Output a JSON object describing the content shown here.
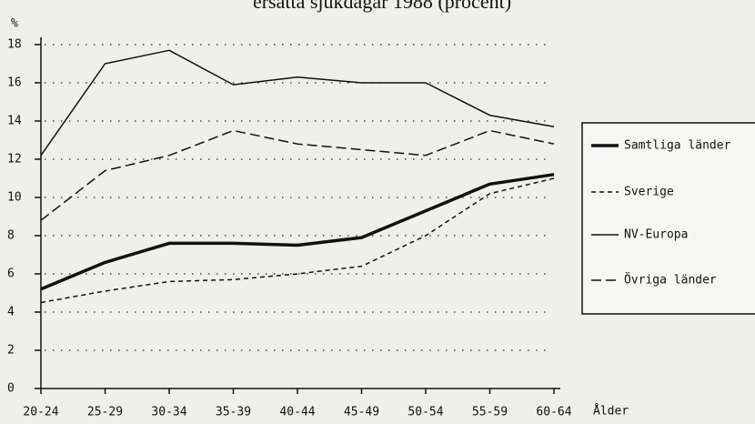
{
  "chart_data": {
    "type": "line",
    "title": "ersatta sjukdagar 1988 (procent)",
    "y_label": "%",
    "x_label": "Ålder",
    "categories": [
      "20-24",
      "25-29",
      "30-34",
      "35-39",
      "40-44",
      "45-49",
      "50-54",
      "55-59",
      "60-64"
    ],
    "series": [
      {
        "name": "Samtliga länder",
        "color": "#111111",
        "style": "thick",
        "values": [
          5.2,
          6.6,
          7.6,
          7.6,
          7.5,
          7.9,
          9.3,
          10.7,
          11.2
        ]
      },
      {
        "name": "Sverige",
        "color": "#111111",
        "style": "dashed",
        "values": [
          4.5,
          5.1,
          5.6,
          5.7,
          6.0,
          6.4,
          8.0,
          10.2,
          11.0
        ]
      },
      {
        "name": "NV-Europa",
        "color": "#111111",
        "style": "solid",
        "values": [
          12.2,
          17.0,
          17.7,
          15.9,
          16.3,
          16.0,
          16.0,
          14.3,
          13.7
        ]
      },
      {
        "name": "Övriga länder",
        "color": "#111111",
        "style": "longdash",
        "values": [
          8.8,
          11.4,
          12.2,
          13.5,
          12.8,
          12.5,
          12.2,
          13.5,
          12.8
        ]
      }
    ],
    "ylim": [
      0,
      18
    ],
    "yticks": [
      0,
      2,
      4,
      6,
      8,
      10,
      12,
      14,
      16,
      18
    ],
    "grid": true,
    "legend": "right"
  }
}
